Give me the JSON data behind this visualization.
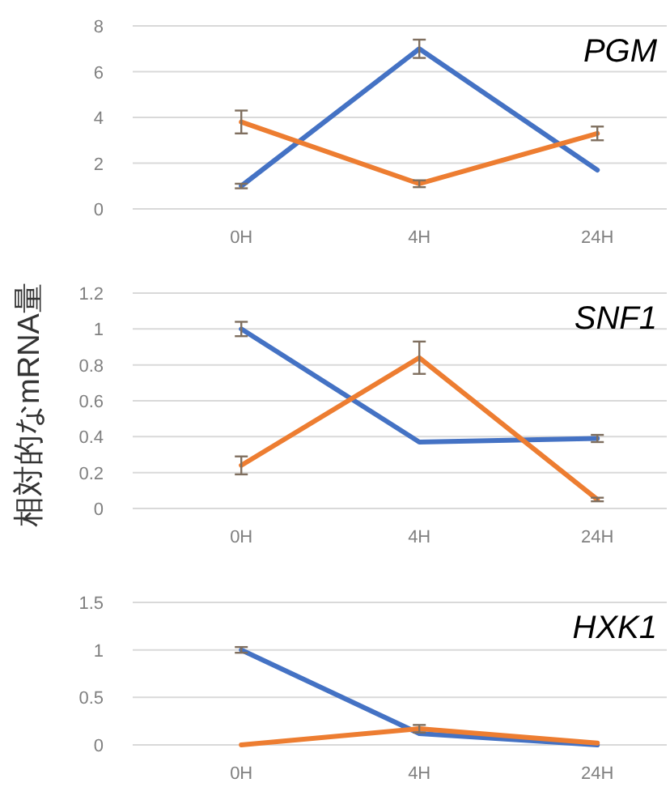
{
  "chart_data": [
    {
      "type": "line",
      "title": "PGM",
      "categories": [
        "0H",
        "4H",
        "24H"
      ],
      "ylim": [
        0,
        8
      ],
      "yticks": [
        0,
        2,
        4,
        6,
        8
      ],
      "grid": "y",
      "marker": "none",
      "series": [
        {
          "color": "#4472c4",
          "values": [
            1.0,
            7.0,
            1.7
          ],
          "errors": [
            0.1,
            0.4,
            null
          ]
        },
        {
          "color": "#ed7d31",
          "values": [
            3.8,
            1.1,
            3.3
          ],
          "errors": [
            0.5,
            0.15,
            0.3
          ]
        }
      ]
    },
    {
      "type": "line",
      "title": "SNF1",
      "ylabel": "相対的なmRNA量",
      "categories": [
        "0H",
        "4H",
        "24H"
      ],
      "ylim": [
        0,
        1.2
      ],
      "yticks": [
        0,
        0.2,
        0.4,
        0.6,
        0.8,
        1,
        1.2
      ],
      "grid": "y",
      "marker": "none",
      "series": [
        {
          "color": "#4472c4",
          "values": [
            1.0,
            0.37,
            0.39
          ],
          "errors": [
            0.04,
            null,
            0.02
          ]
        },
        {
          "color": "#ed7d31",
          "values": [
            0.24,
            0.84,
            0.05
          ],
          "errors": [
            0.05,
            0.09,
            0.01
          ]
        }
      ]
    },
    {
      "type": "line",
      "title": "HXK1",
      "categories": [
        "0H",
        "4H",
        "24H"
      ],
      "ylim": [
        0,
        1.5
      ],
      "yticks": [
        0,
        0.5,
        1,
        1.5
      ],
      "grid": "y",
      "marker": "none",
      "series": [
        {
          "color": "#4472c4",
          "values": [
            1.0,
            0.12,
            0.0
          ],
          "errors": [
            0.03,
            null,
            null
          ]
        },
        {
          "color": "#ed7d31",
          "values": [
            0.0,
            0.17,
            0.02
          ],
          "errors": [
            null,
            0.04,
            null
          ]
        }
      ]
    }
  ]
}
